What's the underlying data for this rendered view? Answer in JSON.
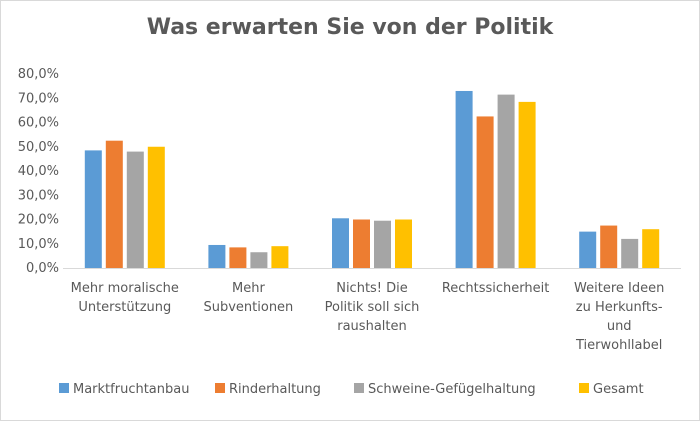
{
  "chart_data": {
    "type": "bar",
    "title": "Was erwarten Sie von der Politik",
    "xlabel": "",
    "ylabel": "",
    "ylim": [
      0,
      80
    ],
    "yticks": [
      "0,0%",
      "10,0%",
      "20,0%",
      "30,0%",
      "40,0%",
      "50,0%",
      "60,0%",
      "70,0%",
      "80,0%"
    ],
    "grid": false,
    "legend_position": "bottom",
    "categories": [
      [
        "Mehr moralische",
        "Unterstützung"
      ],
      [
        "Mehr",
        "Subventionen"
      ],
      [
        "Nichts! Die",
        "Politik soll sich",
        "raushalten"
      ],
      [
        "Rechtssicherheit"
      ],
      [
        "Weitere Ideen",
        "zu Herkunfts-",
        "und",
        "Tierwohllabel"
      ]
    ],
    "series": [
      {
        "name": "Marktfruchtanbau",
        "color": "#5b9bd5",
        "values": [
          48.5,
          9.5,
          20.5,
          73.0,
          15.0
        ]
      },
      {
        "name": "Rinderhaltung",
        "color": "#ed7d31",
        "values": [
          52.5,
          8.5,
          20.0,
          62.5,
          17.5
        ]
      },
      {
        "name": "Schweine-Gefügelhaltung",
        "color": "#a5a5a5",
        "values": [
          48.0,
          6.5,
          19.5,
          71.5,
          12.0
        ]
      },
      {
        "name": "Gesamt",
        "color": "#ffc000",
        "values": [
          50.0,
          9.0,
          20.0,
          68.5,
          16.0
        ]
      }
    ]
  }
}
